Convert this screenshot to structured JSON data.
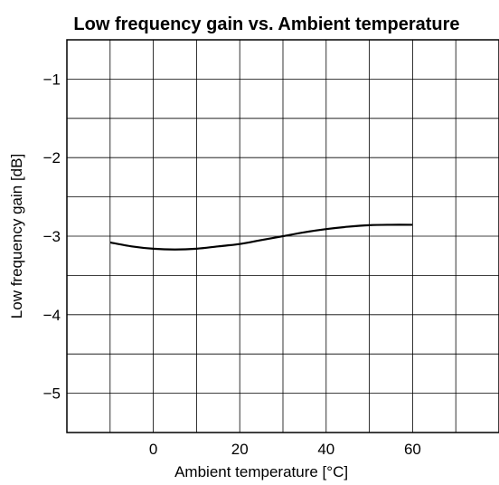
{
  "chart_data": {
    "type": "line",
    "title": "Low frequency gain vs. Ambient temperature",
    "xlabel": "Ambient temperature [°C]",
    "ylabel": "Low frequency gain [dB]",
    "xlim": [
      -20,
      80
    ],
    "ylim": [
      -5.5,
      -0.5
    ],
    "x_ticks": [
      0,
      20,
      40,
      60
    ],
    "x_tick_labels": [
      "0",
      "20",
      "40",
      "60"
    ],
    "y_ticks": [
      -1,
      -2,
      -3,
      -4,
      -5
    ],
    "y_tick_labels": [
      "−1",
      "−2",
      "−3",
      "−4",
      "−5"
    ],
    "grid": true,
    "series": [
      {
        "x": [
          -10,
          -5,
          0,
          5,
          10,
          15,
          20,
          25,
          30,
          35,
          40,
          45,
          50,
          55,
          60
        ],
        "y": [
          -3.08,
          -3.13,
          -3.16,
          -3.17,
          -3.16,
          -3.13,
          -3.1,
          -3.05,
          -3.0,
          -2.95,
          -2.91,
          -2.88,
          -2.86,
          -2.855,
          -2.855
        ],
        "color": "#000000"
      }
    ]
  }
}
